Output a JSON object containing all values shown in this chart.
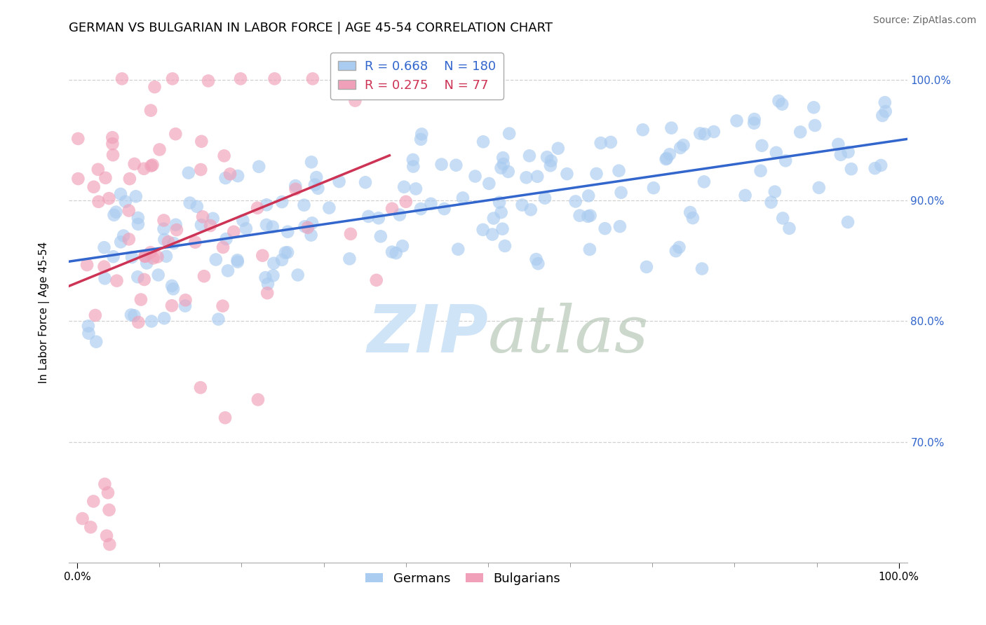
{
  "title": "GERMAN VS BULGARIAN IN LABOR FORCE | AGE 45-54 CORRELATION CHART",
  "source_text": "Source: ZipAtlas.com",
  "ylabel": "In Labor Force | Age 45-54",
  "x_min": 0.0,
  "x_max": 1.0,
  "y_min": 0.6,
  "y_max": 1.03,
  "y_tick_values": [
    0.7,
    0.8,
    0.9,
    1.0
  ],
  "german_color": "#aaccf0",
  "bulgarian_color": "#f0a0b8",
  "german_line_color": "#3366cc",
  "bulgarian_line_color": "#cc3355",
  "german_R": 0.668,
  "german_N": 180,
  "bulgarian_R": 0.275,
  "bulgarian_N": 77,
  "watermark_color": "#d0e4f8",
  "background_color": "#ffffff",
  "grid_color": "#cccccc",
  "title_fontsize": 13,
  "axis_label_fontsize": 11,
  "tick_fontsize": 11,
  "legend_fontsize": 13,
  "source_fontsize": 10
}
